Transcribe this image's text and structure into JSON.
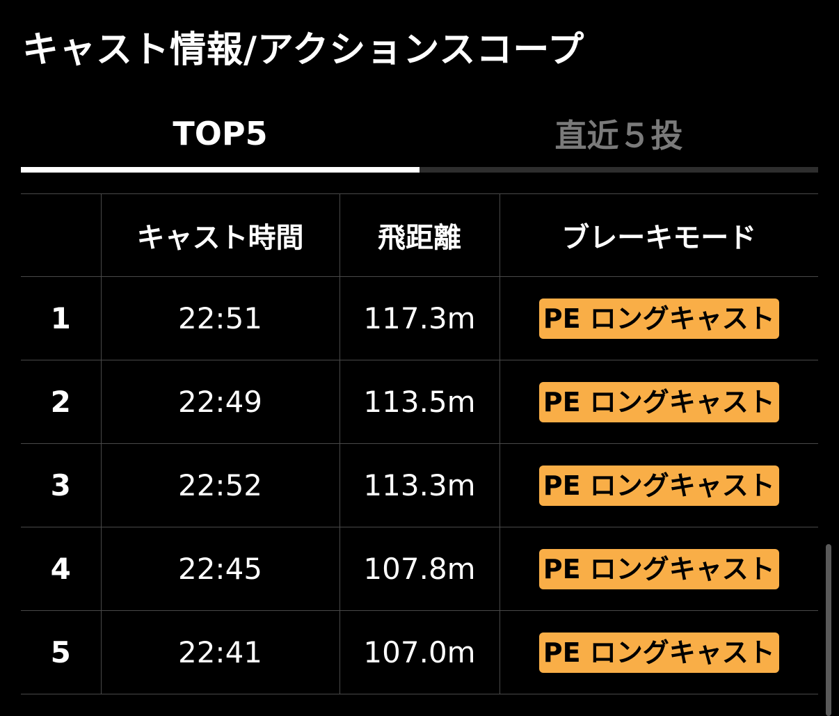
{
  "page": {
    "title": "キャスト情報/アクションスコープ"
  },
  "tabs": [
    {
      "label": "TOP5",
      "active": true
    },
    {
      "label": "直近５投",
      "active": false
    }
  ],
  "table": {
    "columns": [
      "",
      "キャスト時間",
      "飛距離",
      "ブレーキモード"
    ],
    "rows": [
      {
        "rank": "1",
        "time": "22:51",
        "distance": "117.3m",
        "mode": "PE ロングキャスト"
      },
      {
        "rank": "2",
        "time": "22:49",
        "distance": "113.5m",
        "mode": "PE ロングキャスト"
      },
      {
        "rank": "3",
        "time": "22:52",
        "distance": "113.3m",
        "mode": "PE ロングキャスト"
      },
      {
        "rank": "4",
        "time": "22:45",
        "distance": "107.8m",
        "mode": "PE ロングキャスト"
      },
      {
        "rank": "5",
        "time": "22:41",
        "distance": "107.0m",
        "mode": "PE ロングキャスト"
      }
    ]
  },
  "colors": {
    "background": "#000000",
    "text": "#ffffff",
    "inactive_tab": "#7a7a7a",
    "badge": "#f9ae47",
    "grid": "#4a4a4a"
  }
}
